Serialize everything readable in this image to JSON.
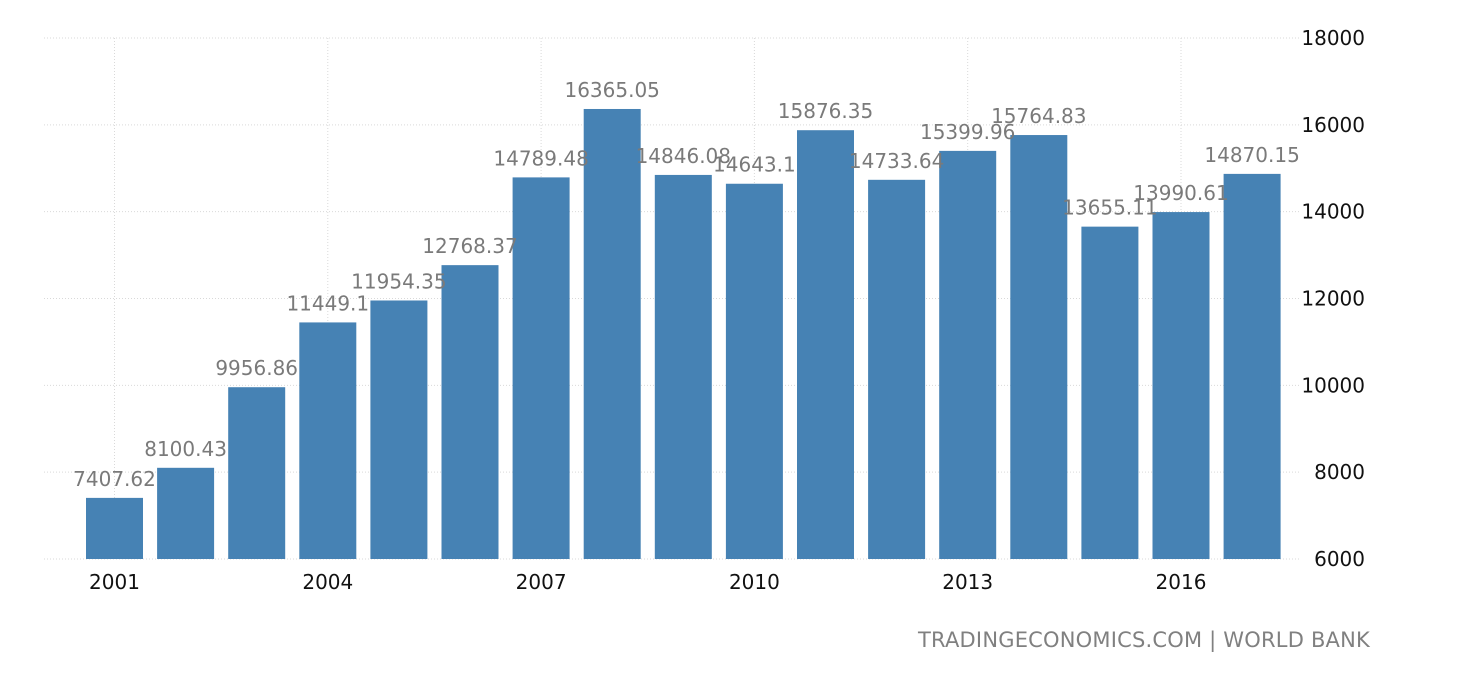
{
  "chart_data": {
    "type": "bar",
    "categories": [
      "2001",
      "2002",
      "2003",
      "2004",
      "2005",
      "2006",
      "2007",
      "2008",
      "2009",
      "2010",
      "2011",
      "2012",
      "2013",
      "2014",
      "2015",
      "2016",
      "2017"
    ],
    "values": [
      7407.62,
      8100.43,
      9956.86,
      11449.1,
      11954.35,
      12768.37,
      14789.48,
      16365.05,
      14846.08,
      14643.1,
      15876.35,
      14733.64,
      15399.96,
      15764.83,
      13655.11,
      13990.61,
      14870.15
    ],
    "value_labels": [
      "7407.62",
      "8100.43",
      "9956.86",
      "11449.1",
      "11954.35",
      "12768.37",
      "14789.48",
      "16365.05",
      "14846.08",
      "14643.1",
      "15876.35",
      "14733.64",
      "15399.96",
      "15764.83",
      "13655.11",
      "13990.61",
      "14870.15"
    ],
    "x_tick_labels": [
      "2001",
      "2004",
      "2007",
      "2010",
      "2013",
      "2016"
    ],
    "y_tick_labels": [
      "6000",
      "8000",
      "10000",
      "12000",
      "14000",
      "16000",
      "18000"
    ],
    "ylim": [
      6000,
      18000
    ],
    "y_axis_side": "right",
    "grid": true,
    "bar_color": "#4682b4",
    "label_color": "#7a7a7a",
    "title": "",
    "xlabel": "",
    "ylabel": ""
  },
  "source": "TRADINGECONOMICS.COM | WORLD BANK"
}
